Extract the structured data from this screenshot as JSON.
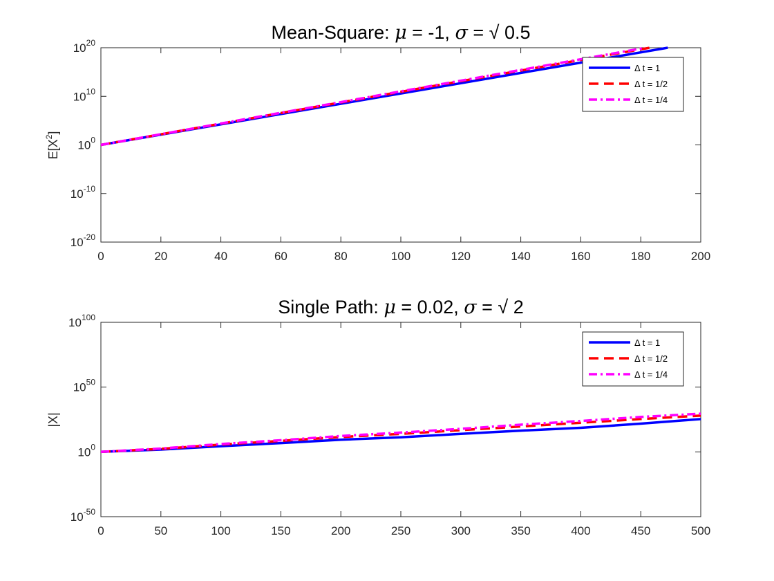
{
  "chart_data": [
    {
      "type": "line",
      "title_parts": {
        "prefix": "Mean-Square: ",
        "mu": "μ",
        "mu_val": " = -1, ",
        "sigma": "σ",
        "sigma_val": " = √ 0.5"
      },
      "ylabel": "E[X",
      "ylabel_sup": "2",
      "ylabel_end": "]",
      "xlabel": "",
      "xlim": [
        0,
        200
      ],
      "ylog_exp_lim": [
        -20,
        20
      ],
      "yscale": "log",
      "xticks": [
        "0",
        "20",
        "40",
        "60",
        "80",
        "100",
        "120",
        "140",
        "160",
        "180",
        "200"
      ],
      "yticks": [
        {
          "base": "10",
          "exp": "-20"
        },
        {
          "base": "10",
          "exp": "-10"
        },
        {
          "base": "10",
          "exp": "0"
        },
        {
          "base": "10",
          "exp": "10"
        },
        {
          "base": "10",
          "exp": "20"
        }
      ],
      "legend_position": "top-right",
      "series": [
        {
          "name": "Δ t = 1",
          "color": "#0000ff",
          "style": "solid",
          "x": [
            0,
            189
          ],
          "log10_y": [
            0,
            20
          ]
        },
        {
          "name": "Δ t = 1/2",
          "color": "#ff0000",
          "style": "dashed",
          "x": [
            0,
            183
          ],
          "log10_y": [
            0,
            20
          ]
        },
        {
          "name": "Δ t = 1/4",
          "color": "#ff00ff",
          "style": "dashdot",
          "x": [
            0,
            181.5
          ],
          "log10_y": [
            0,
            20
          ]
        }
      ]
    },
    {
      "type": "line",
      "title_parts": {
        "prefix": "Single Path: ",
        "mu": "μ",
        "mu_val": " = 0.02, ",
        "sigma": "σ",
        "sigma_val": " = √ 2"
      },
      "ylabel": "|X|",
      "ylabel_sup": "",
      "ylabel_end": "",
      "xlabel": "",
      "xlim": [
        0,
        500
      ],
      "ylog_exp_lim": [
        -50,
        100
      ],
      "yscale": "log",
      "xticks": [
        "0",
        "50",
        "100",
        "150",
        "200",
        "250",
        "300",
        "350",
        "400",
        "450",
        "500"
      ],
      "yticks": [
        {
          "base": "10",
          "exp": "-50"
        },
        {
          "base": "10",
          "exp": "0"
        },
        {
          "base": "10",
          "exp": "50"
        },
        {
          "base": "10",
          "exp": "100"
        }
      ],
      "legend_position": "top-right",
      "series": [
        {
          "name": "Δ t = 1",
          "color": "#0000ff",
          "style": "solid",
          "x": [
            0,
            50,
            100,
            150,
            200,
            250,
            300,
            350,
            400,
            450,
            500
          ],
          "log10_y": [
            0,
            1.8,
            4.4,
            6.8,
            9.4,
            11.3,
            13.9,
            16.4,
            18.6,
            21.8,
            25.3
          ]
        },
        {
          "name": "Δ t = 1/2",
          "color": "#ff0000",
          "style": "dashed",
          "x": [
            0,
            50,
            100,
            150,
            200,
            250,
            300,
            350,
            400,
            450,
            500
          ],
          "log10_y": [
            0,
            2.3,
            5.6,
            8.5,
            11.5,
            13.9,
            16.8,
            19.6,
            22.5,
            25.4,
            28.0
          ]
        },
        {
          "name": "Δ t = 1/4",
          "color": "#ff00ff",
          "style": "dashdot",
          "x": [
            0,
            50,
            100,
            150,
            200,
            250,
            300,
            350,
            400,
            450,
            500
          ],
          "log10_y": [
            0,
            2.6,
            6.1,
            9.0,
            12.3,
            14.9,
            17.8,
            21.0,
            23.9,
            27.0,
            29.5
          ]
        }
      ]
    }
  ]
}
